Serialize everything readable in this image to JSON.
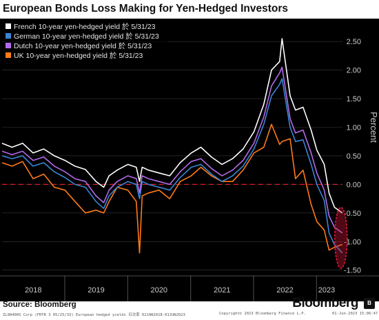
{
  "title": "European Bonds Loss Making for Yen-Hedged Investors",
  "footer": {
    "source": "Source: Bloomberg",
    "brand": "Bloomberg",
    "badge": "B",
    "meta_left": "ZL98400S Corp (FRTR 3 05/25/33) European hedged yields  日次率 02JAN2018-01JUN2023",
    "meta_mid": "Copyright© 2023 Bloomberg Finance L.P.",
    "meta_right": "01-Jun-2023 15:06:47"
  },
  "colors": {
    "background": "#000000",
    "text": "#cccccc",
    "gridline": "#3a3a3a",
    "zero_line": "#e0202a",
    "highlight": "#e31b3b"
  },
  "chart_data": {
    "type": "line",
    "title": "European Bonds Loss Making for Yen-Hedged Investors",
    "xlabel": "",
    "ylabel": "Percent",
    "xlim": [
      "2018-01-02",
      "2023-06-01"
    ],
    "ylim": [
      -1.6,
      2.9
    ],
    "y_ticks": [
      2.5,
      2.0,
      1.5,
      1.0,
      0.5,
      0.0,
      -0.5,
      -1.0,
      -1.5
    ],
    "y_tick_labels": [
      "2.50",
      "2.00",
      "1.50",
      "1.00",
      "0.50",
      "0.00",
      "-0.50",
      "-1.00",
      "-1.50"
    ],
    "x_tick_labels": [
      "2018",
      "2019",
      "2020",
      "2021",
      "2022",
      "2023"
    ],
    "x_tick_positions": [
      "2018-07-02",
      "2019-07-02",
      "2020-07-01",
      "2021-07-02",
      "2022-07-02",
      "2023-03-01"
    ],
    "grid": true,
    "legend": "top-left",
    "zero_line": true,
    "highlight_region": {
      "x": "2023-05-31",
      "y_range": [
        -1.42,
        -0.45
      ]
    },
    "dates": [
      "2018-01-02",
      "2018-03-01",
      "2018-05-01",
      "2018-07-01",
      "2018-09-01",
      "2018-11-01",
      "2019-01-02",
      "2019-03-01",
      "2019-05-01",
      "2019-07-01",
      "2019-08-15",
      "2019-09-15",
      "2019-11-01",
      "2020-01-02",
      "2020-02-20",
      "2020-03-10",
      "2020-03-25",
      "2020-05-01",
      "2020-07-01",
      "2020-09-01",
      "2020-11-01",
      "2021-01-04",
      "2021-03-01",
      "2021-05-01",
      "2021-07-01",
      "2021-09-01",
      "2021-11-01",
      "2022-01-03",
      "2022-03-01",
      "2022-04-15",
      "2022-06-01",
      "2022-06-15",
      "2022-08-01",
      "2022-09-01",
      "2022-10-15",
      "2022-12-01",
      "2023-01-03",
      "2023-02-15",
      "2023-03-15",
      "2023-04-15",
      "2023-05-31"
    ],
    "series": [
      {
        "name": "French 10-year yen-hedged yield 於 5/31/23",
        "color": "#ffffff",
        "values": [
          0.72,
          0.65,
          0.72,
          0.55,
          0.62,
          0.5,
          0.42,
          0.32,
          0.26,
          0.05,
          -0.05,
          0.15,
          0.25,
          0.35,
          0.3,
          0.05,
          0.3,
          0.25,
          0.2,
          0.15,
          0.38,
          0.55,
          0.65,
          0.48,
          0.35,
          0.45,
          0.62,
          0.92,
          1.4,
          2.0,
          2.15,
          2.55,
          1.55,
          1.3,
          1.35,
          0.95,
          0.6,
          0.35,
          -0.15,
          -0.4,
          -0.5
        ]
      },
      {
        "name": "German 10-year yen-hedged yield 於 5/31/23",
        "color": "#3a86d6",
        "values": [
          0.5,
          0.45,
          0.5,
          0.32,
          0.38,
          0.22,
          0.12,
          0.0,
          -0.05,
          -0.3,
          -0.42,
          -0.2,
          -0.05,
          0.05,
          0.0,
          -0.25,
          0.05,
          0.0,
          -0.05,
          -0.1,
          0.12,
          0.3,
          0.35,
          0.18,
          0.05,
          0.15,
          0.32,
          0.62,
          1.05,
          1.55,
          1.75,
          1.85,
          1.0,
          0.75,
          0.78,
          0.35,
          0.0,
          -0.28,
          -0.85,
          -1.05,
          -1.2
        ]
      },
      {
        "name": "Dutch 10-year yen-hedged yield 於 5/31/23",
        "color": "#b46bea",
        "values": [
          0.58,
          0.52,
          0.58,
          0.42,
          0.48,
          0.32,
          0.22,
          0.1,
          0.05,
          -0.2,
          -0.32,
          -0.1,
          0.05,
          0.15,
          0.1,
          -0.15,
          0.15,
          0.1,
          0.05,
          0.0,
          0.22,
          0.4,
          0.45,
          0.28,
          0.15,
          0.25,
          0.42,
          0.72,
          1.18,
          1.72,
          1.95,
          2.05,
          1.15,
          0.9,
          0.95,
          0.55,
          0.2,
          -0.1,
          -0.55,
          -0.75,
          -0.85
        ]
      },
      {
        "name": "UK 10-year yen-hedged yield 於 5/31/23",
        "color": "#ff7a1a",
        "values": [
          0.38,
          0.32,
          0.4,
          0.1,
          0.18,
          -0.05,
          -0.1,
          -0.3,
          -0.5,
          -0.45,
          -0.5,
          -0.3,
          -0.05,
          -0.1,
          -0.3,
          -1.2,
          -0.2,
          -0.15,
          -0.1,
          -0.25,
          0.05,
          0.15,
          0.3,
          0.15,
          0.05,
          0.05,
          0.25,
          0.55,
          0.65,
          1.05,
          0.7,
          0.75,
          0.8,
          0.1,
          0.25,
          -0.35,
          -0.65,
          -0.8,
          -1.15,
          -1.1,
          -1.05
        ]
      }
    ]
  }
}
